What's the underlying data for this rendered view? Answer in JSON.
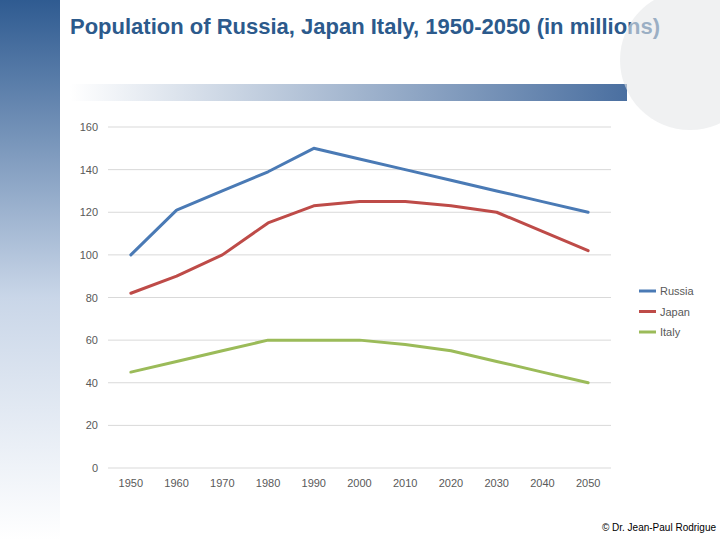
{
  "chart_data": {
    "type": "line",
    "title": "Population of Russia, Japan Italy, 1950-2050 (in millions)",
    "annotation": "© Dr. Jean-Paul Rodrigue",
    "categories": [
      "1950",
      "1960",
      "1970",
      "1980",
      "1990",
      "2000",
      "2010",
      "2020",
      "2030",
      "2040",
      "2050"
    ],
    "series": [
      {
        "name": "Russia",
        "color": "#4a7ab5",
        "values": [
          100,
          121,
          130,
          139,
          150,
          145,
          140,
          135,
          130,
          125,
          120
        ]
      },
      {
        "name": "Japan",
        "color": "#be4b48",
        "values": [
          82,
          90,
          100,
          115,
          123,
          125,
          125,
          123,
          120,
          111,
          102
        ]
      },
      {
        "name": "Italy",
        "color": "#9bbb59",
        "values": [
          45,
          50,
          55,
          60,
          60,
          60,
          58,
          55,
          50,
          45,
          40
        ]
      }
    ],
    "ylim": [
      0,
      160
    ],
    "yticks": [
      0,
      20,
      40,
      60,
      80,
      100,
      120,
      140,
      160
    ],
    "grid": true,
    "legend": "right"
  }
}
